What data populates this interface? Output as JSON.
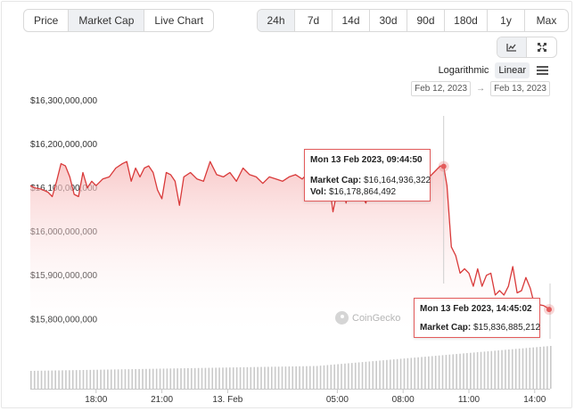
{
  "view_tabs": [
    "Price",
    "Market Cap",
    "Live Chart"
  ],
  "view_active": "Market Cap",
  "range_tabs": [
    "24h",
    "7d",
    "14d",
    "30d",
    "90d",
    "180d",
    "1y",
    "Max"
  ],
  "range_active": "24h",
  "chart_type_icons": [
    "line-chart-icon",
    "candlestick-icon"
  ],
  "scale": {
    "logarithmic_label": "Logarithmic",
    "linear_label": "Linear",
    "selected": "Linear"
  },
  "date_range": {
    "from": "Feb 12, 2023",
    "to": "Feb 13, 2023",
    "arrow": "→"
  },
  "watermark": "CoinGecko",
  "colors": {
    "line": "#d93a3a",
    "fill_top": "#fbd9d9",
    "volume": "#c9c9c9",
    "accent_bg": "#eef0f3"
  },
  "tooltips": [
    {
      "head": "Mon 13 Feb 2023, 09:44:50",
      "cap_label": "Market Cap:",
      "cap_value": "$16,164,936,322",
      "vol_label": "Vol:",
      "vol_value": "$16,178,864,492"
    },
    {
      "head": "Mon 13 Feb 2023, 14:45:02",
      "cap_label": "Market Cap:",
      "cap_value": "$15,836,885,212"
    }
  ],
  "chart_data": {
    "type": "area",
    "title": "",
    "xlabel": "",
    "ylabel": "",
    "x_ticks": [
      {
        "label": "18:00",
        "h": 18
      },
      {
        "label": "21:00",
        "h": 21
      },
      {
        "label": "13. Feb",
        "h": 24
      },
      {
        "label": "05:00",
        "h": 29
      },
      {
        "label": "08:00",
        "h": 32
      },
      {
        "label": "11:00",
        "h": 35
      },
      {
        "label": "14:00",
        "h": 38
      }
    ],
    "y_ticks": [
      {
        "label": "$16,300,000,000",
        "v": 16300
      },
      {
        "label": "$16,200,000,000",
        "v": 16200
      },
      {
        "label": "$16,100,000,000",
        "v": 16100
      },
      {
        "label": "$16,000,000,000",
        "v": 16000
      },
      {
        "label": "$15,900,000,000",
        "v": 15900
      },
      {
        "label": "$15,800,000,000",
        "v": 15800
      }
    ],
    "x_range_hours": [
      15.0,
      38.7
    ],
    "ylim": [
      15770,
      16320
    ],
    "units": "USD millions",
    "series": [
      {
        "x": [
          15.0,
          15.2,
          15.5,
          15.8,
          16.0,
          16.2,
          16.4,
          16.6,
          16.8,
          17.0,
          17.2,
          17.4,
          17.6,
          17.8,
          18.0,
          18.3,
          18.6,
          18.9,
          19.2,
          19.4,
          19.6,
          19.8,
          20.0,
          20.2,
          20.4,
          20.6,
          20.8,
          21.0,
          21.2,
          21.4,
          21.6,
          21.8,
          22.0,
          22.3,
          22.6,
          22.9,
          23.2,
          23.5,
          23.8,
          24.1,
          24.4,
          24.7,
          25.0,
          25.3,
          25.6,
          25.9,
          26.2,
          26.5,
          26.8,
          27.1,
          27.4,
          27.7,
          28.0,
          28.2,
          28.4,
          28.6,
          28.8,
          29.0,
          29.2,
          29.4,
          29.6,
          29.8,
          30.0,
          30.3,
          30.6,
          30.9,
          31.2,
          31.5,
          31.8,
          32.1,
          32.4,
          32.7,
          33.0,
          33.2,
          33.4,
          33.6,
          33.7,
          33.85,
          34.0,
          34.2,
          34.4,
          34.6,
          34.8,
          35.0,
          35.2,
          35.4,
          35.6,
          35.8,
          36.0,
          36.2,
          36.4,
          36.6,
          36.8,
          37.0,
          37.2,
          37.4,
          37.6,
          37.8,
          38.0,
          38.2,
          38.4,
          38.6,
          38.7
        ],
        "y": [
          16120,
          16115,
          16112,
          16105,
          16095,
          16130,
          16170,
          16165,
          16140,
          16100,
          16095,
          16150,
          16115,
          16130,
          16120,
          16135,
          16140,
          16160,
          16170,
          16175,
          16130,
          16160,
          16140,
          16160,
          16165,
          16150,
          16110,
          16090,
          16150,
          16145,
          16130,
          16075,
          16140,
          16150,
          16135,
          16130,
          16175,
          16145,
          16140,
          16150,
          16130,
          16160,
          16145,
          16140,
          16125,
          16140,
          16135,
          16130,
          16140,
          16145,
          16135,
          16150,
          16145,
          16125,
          16150,
          16140,
          16060,
          16110,
          16150,
          16080,
          16140,
          16145,
          16110,
          16080,
          16140,
          16145,
          16130,
          16140,
          16145,
          16135,
          16150,
          16140,
          16130,
          16140,
          16150,
          16160,
          16165,
          16164,
          16120,
          15980,
          15960,
          15920,
          15930,
          15920,
          15890,
          15930,
          15890,
          15915,
          15920,
          15870,
          15880,
          15870,
          15890,
          15935,
          15875,
          15880,
          15910,
          15885,
          15845,
          15848,
          15846,
          15840,
          15837
        ]
      }
    ],
    "volume": {
      "note": "volume bars gradually increasing",
      "trend": "increasing"
    }
  }
}
